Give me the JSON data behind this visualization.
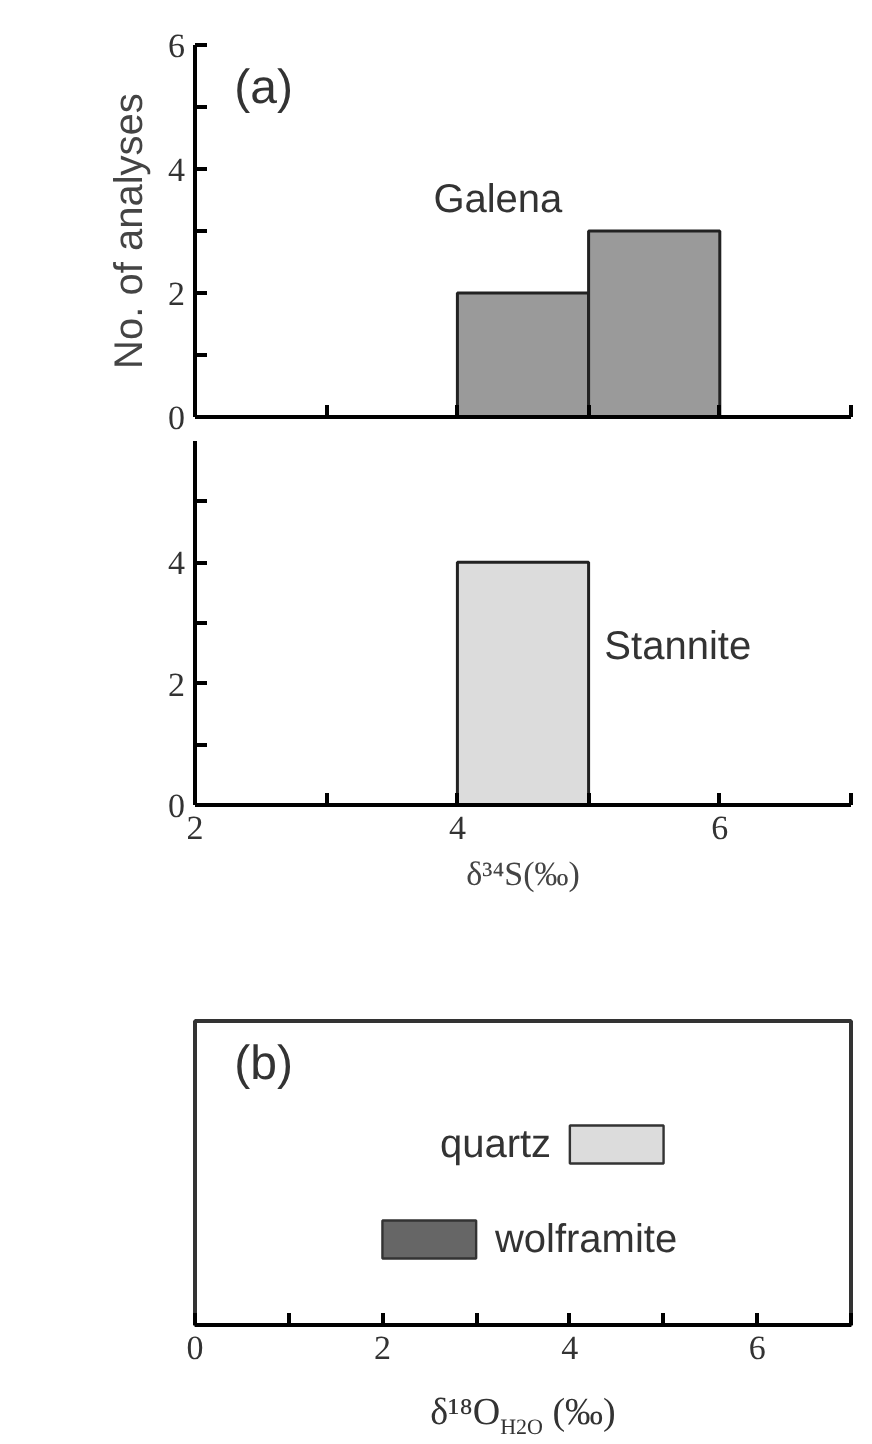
{
  "chart_data": [
    {
      "type": "histogram",
      "ylabel": "No. of analyses",
      "annotations": [
        "(a)"
      ],
      "bins": [
        4,
        5,
        6
      ],
      "series": [
        {
          "name": "Galena",
          "color": "#9a9a9a",
          "values": [
            2,
            3
          ]
        }
      ],
      "xlim": [
        2,
        7
      ],
      "xticks": [
        {
          "value": 3,
          "label": null
        },
        {
          "value": 4,
          "label": null
        },
        {
          "value": 5,
          "label": null
        },
        {
          "value": 6,
          "label": null
        },
        {
          "value": 7,
          "label": null
        }
      ],
      "ylim": [
        0,
        6
      ],
      "yticks": [
        0,
        {
          "value": 1,
          "label": null
        },
        2,
        {
          "value": 3,
          "label": null
        },
        4,
        {
          "value": 5,
          "label": null
        },
        6
      ],
      "tick_labels": "y",
      "grid": false
    },
    {
      "type": "histogram",
      "xlabel": "δ³⁴S(‰)",
      "bins": [
        4,
        5
      ],
      "series": [
        {
          "name": "Stannite",
          "color": "#dcdcdc",
          "values": [
            4
          ]
        }
      ],
      "xlim": [
        2,
        7
      ],
      "xticks": [
        2,
        {
          "value": 3,
          "label": null
        },
        4,
        {
          "value": 5,
          "label": null
        },
        6,
        {
          "value": 7,
          "label": null
        }
      ],
      "ylim": [
        0,
        6
      ],
      "yticks": [
        0,
        {
          "value": 1,
          "label": null
        },
        2,
        {
          "value": 3,
          "label": null
        },
        4,
        {
          "value": 5,
          "label": null
        }
      ],
      "grid": false
    },
    {
      "type": "bar",
      "orientation": "horizontal",
      "xlabel": "δ¹⁸O$_{H2O}$ (‰)",
      "annotations": [
        "(b)"
      ],
      "categories": [
        "quartz",
        "wolframite"
      ],
      "base": [
        4,
        2
      ],
      "values": [
        1,
        1
      ],
      "colors": [
        "#dcdcdc",
        "#666666"
      ],
      "xlim": [
        0,
        7
      ],
      "xticks": [
        0,
        {
          "value": 1,
          "label": null
        },
        2,
        {
          "value": 3,
          "label": null
        },
        4,
        {
          "value": 5,
          "label": null
        },
        6,
        {
          "value": 7,
          "label": null
        }
      ],
      "tick_labels": "x",
      "grid": false
    }
  ]
}
